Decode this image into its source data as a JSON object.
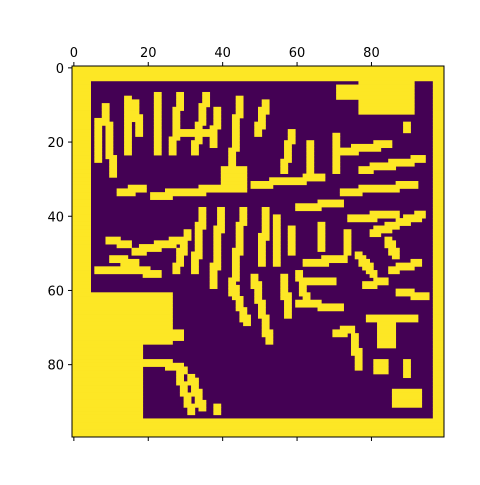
{
  "chart_data": {
    "type": "heatmap",
    "title": "",
    "xlabel": "",
    "ylabel": "",
    "shape": [
      100,
      100
    ],
    "xlim": [
      -0.5,
      99.5
    ],
    "ylim": [
      99.5,
      -0.5
    ],
    "x_tick_position": "top",
    "x_ticks": [
      0,
      20,
      40,
      60,
      80
    ],
    "y_ticks": [
      0,
      20,
      40,
      60,
      80
    ],
    "x_tick_labels": [
      "0",
      "20",
      "40",
      "60",
      "80"
    ],
    "y_tick_labels": [
      "0",
      "20",
      "40",
      "60",
      "80"
    ],
    "colormap": "viridis",
    "value_range": [
      0,
      1
    ],
    "colors": {
      "low": "#440154",
      "high": "#fde725"
    },
    "grid": false,
    "border": {
      "value": 1,
      "outer_rows": [
        0,
        1,
        2,
        3,
        95,
        96,
        97,
        98,
        99
      ],
      "outer_cols": [
        0,
        1,
        2,
        3,
        4,
        97,
        98,
        99
      ]
    },
    "high_regions": [
      {
        "kind": "blob",
        "x": [
          71,
          76
        ],
        "y": [
          5,
          8
        ]
      },
      {
        "kind": "blob",
        "x": [
          77,
          91
        ],
        "y": [
          3,
          12
        ]
      },
      {
        "kind": "bar",
        "from": [
          8,
          10
        ],
        "to": [
          10,
          28
        ]
      },
      {
        "kind": "bar",
        "from": [
          14,
          8
        ],
        "to": [
          14,
          22
        ]
      },
      {
        "kind": "bar",
        "from": [
          16,
          9
        ],
        "to": [
          17,
          17
        ]
      },
      {
        "kind": "bar",
        "from": [
          22,
          7
        ],
        "to": [
          22,
          22
        ]
      },
      {
        "kind": "bar",
        "from": [
          28,
          7
        ],
        "to": [
          26,
          22
        ]
      },
      {
        "kind": "bar",
        "from": [
          35,
          7
        ],
        "to": [
          32,
          22
        ]
      },
      {
        "kind": "bar",
        "from": [
          38,
          11
        ],
        "to": [
          37,
          20
        ]
      },
      {
        "kind": "bar",
        "from": [
          44,
          8
        ],
        "to": [
          42,
          26
        ]
      },
      {
        "kind": "bar",
        "from": [
          51,
          9
        ],
        "to": [
          49,
          17
        ]
      },
      {
        "kind": "bar",
        "from": [
          58,
          17
        ],
        "to": [
          56,
          27
        ]
      },
      {
        "kind": "bar",
        "from": [
          63,
          20
        ],
        "to": [
          63,
          29
        ]
      },
      {
        "kind": "bar",
        "from": [
          70,
          18
        ],
        "to": [
          70,
          27
        ]
      },
      {
        "kind": "bar",
        "from": [
          72,
          22
        ],
        "to": [
          84,
          20
        ]
      },
      {
        "kind": "bar",
        "from": [
          77,
          27
        ],
        "to": [
          93,
          24
        ]
      },
      {
        "kind": "bar",
        "from": [
          29,
          17
        ],
        "to": [
          37,
          17
        ]
      },
      {
        "kind": "bar",
        "from": [
          6,
          14
        ],
        "to": [
          6,
          24
        ]
      },
      {
        "kind": "bar",
        "from": [
          12,
          33
        ],
        "to": [
          18,
          32
        ]
      },
      {
        "kind": "bar",
        "from": [
          21,
          34
        ],
        "to": [
          38,
          32
        ]
      },
      {
        "kind": "blob",
        "x": [
          40,
          46
        ],
        "y": [
          27,
          33
        ]
      },
      {
        "kind": "bar",
        "from": [
          48,
          31
        ],
        "to": [
          66,
          29
        ]
      },
      {
        "kind": "bar",
        "from": [
          72,
          33
        ],
        "to": [
          91,
          31
        ]
      },
      {
        "kind": "bar",
        "from": [
          60,
          37
        ],
        "to": [
          71,
          36
        ]
      },
      {
        "kind": "bar",
        "from": [
          66,
          42
        ],
        "to": [
          66,
          48
        ]
      },
      {
        "kind": "bar",
        "from": [
          58,
          43
        ],
        "to": [
          58,
          49
        ]
      },
      {
        "kind": "bar",
        "from": [
          74,
          40
        ],
        "to": [
          86,
          39
        ]
      },
      {
        "kind": "bar",
        "from": [
          80,
          44
        ],
        "to": [
          93,
          39
        ]
      },
      {
        "kind": "bar",
        "from": [
          73,
          44
        ],
        "to": [
          73,
          49
        ]
      },
      {
        "kind": "bar",
        "from": [
          30,
          44
        ],
        "to": [
          27,
          54
        ]
      },
      {
        "kind": "bar",
        "from": [
          34,
          38
        ],
        "to": [
          32,
          54
        ]
      },
      {
        "kind": "bar",
        "from": [
          39,
          38
        ],
        "to": [
          37,
          58
        ]
      },
      {
        "kind": "bar",
        "from": [
          45,
          38
        ],
        "to": [
          42,
          60
        ]
      },
      {
        "kind": "bar",
        "from": [
          51,
          38
        ],
        "to": [
          50,
          52
        ]
      },
      {
        "kind": "bar",
        "from": [
          54,
          40
        ],
        "to": [
          54,
          52
        ]
      },
      {
        "kind": "bar",
        "from": [
          16,
          49
        ],
        "to": [
          28,
          46
        ]
      },
      {
        "kind": "bar",
        "from": [
          9,
          46
        ],
        "to": [
          14,
          47
        ]
      },
      {
        "kind": "bar",
        "from": [
          10,
          51
        ],
        "to": [
          16,
          52
        ]
      },
      {
        "kind": "bar",
        "from": [
          16,
          54
        ],
        "to": [
          22,
          55
        ]
      },
      {
        "kind": "bar",
        "from": [
          6,
          54
        ],
        "to": [
          14,
          54
        ]
      },
      {
        "kind": "bar",
        "from": [
          42,
          58
        ],
        "to": [
          46,
          68
        ]
      },
      {
        "kind": "bar",
        "from": [
          48,
          56
        ],
        "to": [
          52,
          73
        ]
      },
      {
        "kind": "bar",
        "from": [
          56,
          56
        ],
        "to": [
          57,
          66
        ]
      },
      {
        "kind": "bar",
        "from": [
          60,
          55
        ],
        "to": [
          62,
          62
        ]
      },
      {
        "kind": "bar",
        "from": [
          62,
          52
        ],
        "to": [
          72,
          51
        ]
      },
      {
        "kind": "bar",
        "from": [
          62,
          57
        ],
        "to": [
          69,
          57
        ]
      },
      {
        "kind": "bar",
        "from": [
          60,
          63
        ],
        "to": [
          71,
          64
        ]
      },
      {
        "kind": "bar",
        "from": [
          76,
          50
        ],
        "to": [
          80,
          55
        ]
      },
      {
        "kind": "bar",
        "from": [
          78,
          58
        ],
        "to": [
          83,
          57
        ]
      },
      {
        "kind": "bar",
        "from": [
          85,
          54
        ],
        "to": [
          92,
          52
        ]
      },
      {
        "kind": "bar",
        "from": [
          84,
          46
        ],
        "to": [
          86,
          50
        ]
      },
      {
        "kind": "bar",
        "from": [
          87,
          60
        ],
        "to": [
          94,
          61
        ]
      },
      {
        "kind": "bar",
        "from": [
          79,
          67
        ],
        "to": [
          91,
          67
        ]
      },
      {
        "kind": "bar",
        "from": [
          70,
          71
        ],
        "to": [
          74,
          70
        ]
      },
      {
        "kind": "bar",
        "from": [
          75,
          72
        ],
        "to": [
          76,
          80
        ]
      },
      {
        "kind": "blob",
        "x": [
          82,
          86
        ],
        "y": [
          69,
          75
        ]
      },
      {
        "kind": "blob",
        "x": [
          81,
          84
        ],
        "y": [
          79,
          82
        ]
      },
      {
        "kind": "blob",
        "x": [
          86,
          93
        ],
        "y": [
          87,
          91
        ]
      },
      {
        "kind": "blob",
        "x": [
          5,
          18
        ],
        "y": [
          61,
          95
        ]
      },
      {
        "kind": "blob",
        "x": [
          18,
          26
        ],
        "y": [
          61,
          74
        ]
      },
      {
        "kind": "blob",
        "x": [
          9,
          15
        ],
        "y": [
          88,
          95
        ]
      },
      {
        "kind": "bar",
        "from": [
          15,
          79
        ],
        "to": [
          22,
          79
        ]
      },
      {
        "kind": "bar",
        "from": [
          24,
          79
        ],
        "to": [
          29,
          81
        ]
      },
      {
        "kind": "bar",
        "from": [
          28,
          83
        ],
        "to": [
          31,
          92
        ]
      },
      {
        "kind": "bar",
        "from": [
          31,
          83
        ],
        "to": [
          34,
          91
        ]
      },
      {
        "kind": "blob",
        "x": [
          27,
          29
        ],
        "y": [
          71,
          73
        ]
      },
      {
        "kind": "blob",
        "x": [
          38,
          39
        ],
        "y": [
          91,
          93
        ]
      },
      {
        "kind": "blob",
        "x": [
          89,
          90
        ],
        "y": [
          15,
          17
        ]
      },
      {
        "kind": "blob",
        "x": [
          89,
          90
        ],
        "y": [
          79,
          83
        ]
      }
    ]
  }
}
